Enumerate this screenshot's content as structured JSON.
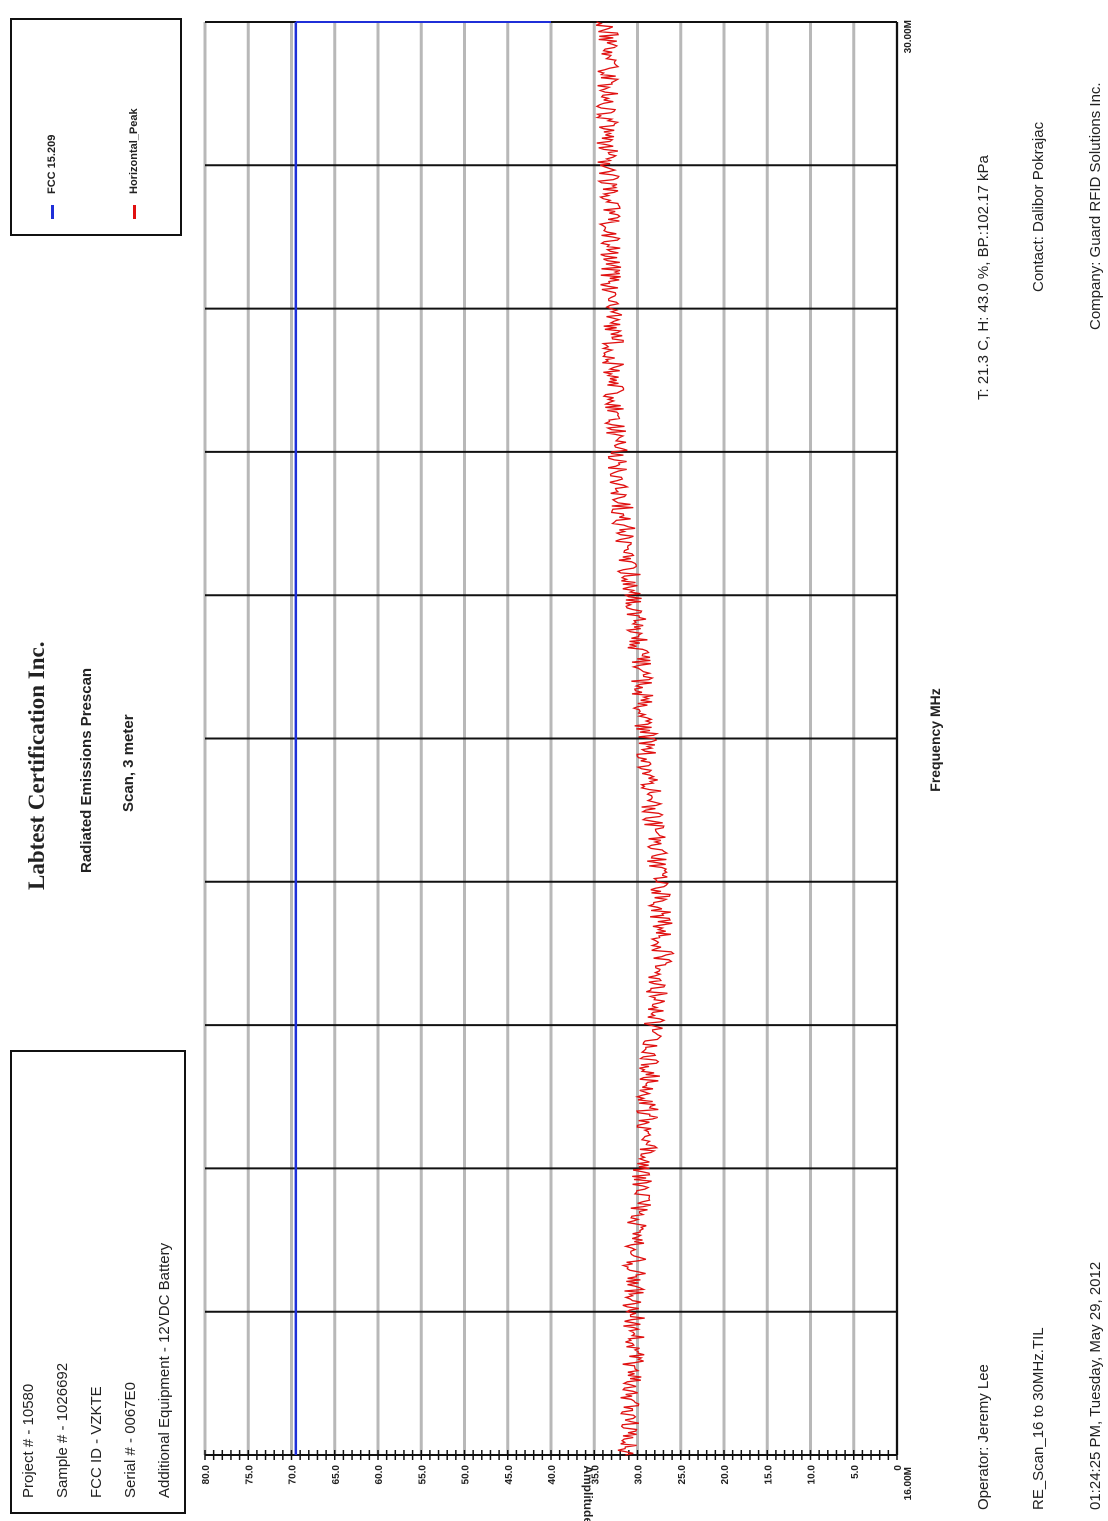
{
  "header": {
    "title": "Labtest Certification Inc.",
    "subtitle": "Radiated Emissions Prescan",
    "scan": "Scan, 3 meter"
  },
  "project_box": {
    "lines": [
      "Project # - 10580",
      "Sample # - 1026692",
      "FCC ID - VZKTE",
      "Serial # - 0067E0",
      "Additional Equipment - 12VDC Battery"
    ]
  },
  "footer": {
    "conditions": "T: 21.3 C, H: 43.0 %, BP.:102.17 kPa",
    "contact": "Contact: Dalibor Pokrajac",
    "company": "Company: Guard RFID Solutions Inc.",
    "operator": "Operator: Jeremy Lee",
    "file": "RE_Scan_16 to 30MHz.TIL",
    "timestamp": "01:24:25 PM, Tuesday, May 29, 2012"
  },
  "chart_data": {
    "type": "line",
    "xlabel": "Frequency MHz",
    "ylabel": "Amplitude dBuV",
    "x_tick_labels": [
      "16.00M",
      "30.00M"
    ],
    "xlim": [
      16,
      30
    ],
    "ylim": [
      0,
      80
    ],
    "y_ticks": [
      "80.0",
      "75.0",
      "70.0",
      "65.0",
      "60.0",
      "55.0",
      "50.0",
      "45.0",
      "40.0",
      "35.0",
      "30.0",
      "25.0",
      "20.0",
      "15.0",
      "10.0",
      "5.0",
      "0"
    ],
    "grid": true,
    "legend": "top-right",
    "series": [
      {
        "name": "FCC 15.209",
        "color": "#1f2fd8",
        "x": [
          16,
          30
        ],
        "values": [
          69.5,
          69.5
        ]
      },
      {
        "name": "Horizontal_Peak",
        "color": "#e01010",
        "x": [
          16,
          17,
          18,
          19,
          20,
          21,
          22,
          23,
          24,
          25,
          26,
          27,
          28,
          29,
          30
        ],
        "values": [
          31.0,
          30.5,
          30.3,
          29.0,
          28.5,
          27.0,
          28.0,
          29.0,
          30.0,
          31.5,
          32.5,
          33.0,
          33.3,
          33.5,
          33.5
        ]
      }
    ]
  }
}
